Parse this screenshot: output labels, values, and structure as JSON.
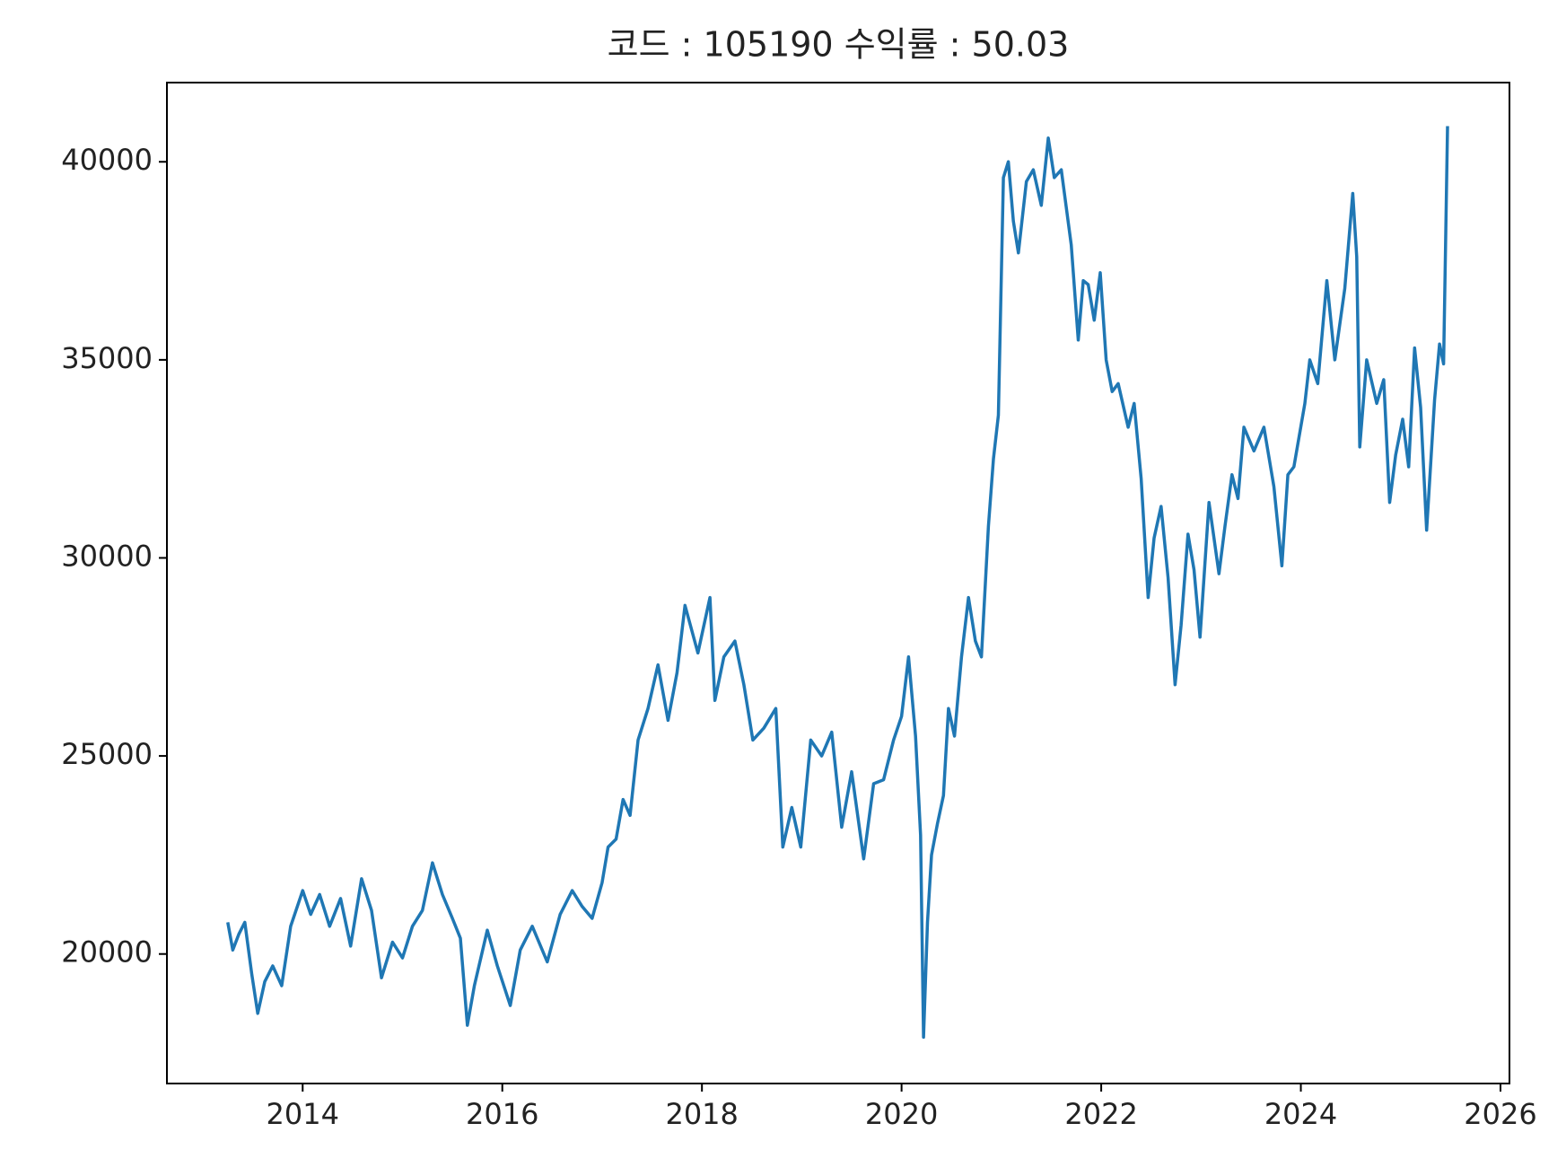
{
  "chart_data": {
    "type": "line",
    "title": "코드 : 105190 수익률 : 50.03",
    "x": [
      2013.25,
      2013.3,
      2013.36,
      2013.42,
      2013.49,
      2013.55,
      2013.62,
      2013.7,
      2013.79,
      2013.88,
      2014.0,
      2014.08,
      2014.17,
      2014.27,
      2014.38,
      2014.48,
      2014.59,
      2014.69,
      2014.79,
      2014.9,
      2015.0,
      2015.1,
      2015.2,
      2015.3,
      2015.4,
      2015.5,
      2015.58,
      2015.65,
      2015.72,
      2015.85,
      2015.95,
      2016.08,
      2016.18,
      2016.3,
      2016.45,
      2016.58,
      2016.7,
      2016.8,
      2016.9,
      2017.0,
      2017.06,
      2017.14,
      2017.21,
      2017.28,
      2017.36,
      2017.46,
      2017.56,
      2017.66,
      2017.75,
      2017.83,
      2017.96,
      2018.08,
      2018.13,
      2018.22,
      2018.33,
      2018.42,
      2018.51,
      2018.62,
      2018.74,
      2018.81,
      2018.9,
      2018.99,
      2019.09,
      2019.2,
      2019.3,
      2019.4,
      2019.5,
      2019.62,
      2019.72,
      2019.82,
      2019.92,
      2020.0,
      2020.07,
      2020.14,
      2020.19,
      2020.22,
      2020.26,
      2020.3,
      2020.36,
      2020.42,
      2020.47,
      2020.53,
      2020.6,
      2020.67,
      2020.74,
      2020.8,
      2020.87,
      2020.92,
      2020.97,
      2021.02,
      2021.07,
      2021.12,
      2021.17,
      2021.25,
      2021.32,
      2021.4,
      2021.47,
      2021.53,
      2021.6,
      2021.7,
      2021.77,
      2021.82,
      2021.87,
      2021.93,
      2021.99,
      2022.05,
      2022.11,
      2022.17,
      2022.27,
      2022.33,
      2022.4,
      2022.47,
      2022.53,
      2022.6,
      2022.67,
      2022.74,
      2022.8,
      2022.87,
      2022.93,
      2022.99,
      2023.08,
      2023.18,
      2023.24,
      2023.31,
      2023.37,
      2023.43,
      2023.53,
      2023.63,
      2023.73,
      2023.81,
      2023.87,
      2023.93,
      2024.04,
      2024.09,
      2024.17,
      2024.26,
      2024.34,
      2024.44,
      2024.52,
      2024.56,
      2024.59,
      2024.66,
      2024.76,
      2024.83,
      2024.89,
      2024.95,
      2025.02,
      2025.08,
      2025.14,
      2025.2,
      2025.26,
      2025.34,
      2025.39,
      2025.43,
      2025.47
    ],
    "series": [
      {
        "name": "105190",
        "color": "#1f77b4",
        "values": [
          20800,
          20100,
          20500,
          20800,
          19500,
          18500,
          19300,
          19700,
          19200,
          20700,
          21600,
          21000,
          21500,
          20700,
          21400,
          20200,
          21900,
          21100,
          19400,
          20300,
          19900,
          20700,
          21100,
          22300,
          21500,
          20900,
          20400,
          18200,
          19200,
          20600,
          19700,
          18700,
          20100,
          20700,
          19800,
          21000,
          21600,
          21200,
          20900,
          21800,
          22700,
          22900,
          23900,
          23500,
          25400,
          26200,
          27300,
          25900,
          27100,
          28800,
          27600,
          29000,
          26400,
          27500,
          27900,
          26800,
          25400,
          25700,
          26200,
          22700,
          23700,
          22700,
          25400,
          25000,
          25600,
          23200,
          24600,
          22400,
          24300,
          24400,
          25400,
          26000,
          27500,
          25500,
          23000,
          17900,
          20800,
          22500,
          23300,
          24000,
          26200,
          25500,
          27500,
          29000,
          27900,
          27500,
          30800,
          32500,
          33600,
          39600,
          40000,
          38500,
          37700,
          39500,
          39800,
          38900,
          40600,
          39600,
          39800,
          37900,
          35500,
          37000,
          36900,
          36000,
          37200,
          35000,
          34200,
          34400,
          33300,
          33900,
          32000,
          29000,
          30500,
          31300,
          29500,
          26800,
          28300,
          30600,
          29700,
          28000,
          31400,
          29600,
          30800,
          32100,
          31500,
          33300,
          32700,
          33300,
          31800,
          29800,
          32100,
          32300,
          33900,
          35000,
          34400,
          37000,
          35000,
          36800,
          39200,
          37600,
          32800,
          35000,
          33900,
          34500,
          31400,
          32600,
          33500,
          32300,
          35300,
          33800,
          30700,
          34000,
          35400,
          34900,
          40900
        ]
      }
    ],
    "xlim": [
      2012.64,
      2026.09
    ],
    "ylim": [
      16730,
      42000
    ],
    "xticks": [
      2014,
      2016,
      2018,
      2020,
      2022,
      2024,
      2026
    ],
    "yticks": [
      20000,
      25000,
      30000,
      35000,
      40000
    ]
  }
}
